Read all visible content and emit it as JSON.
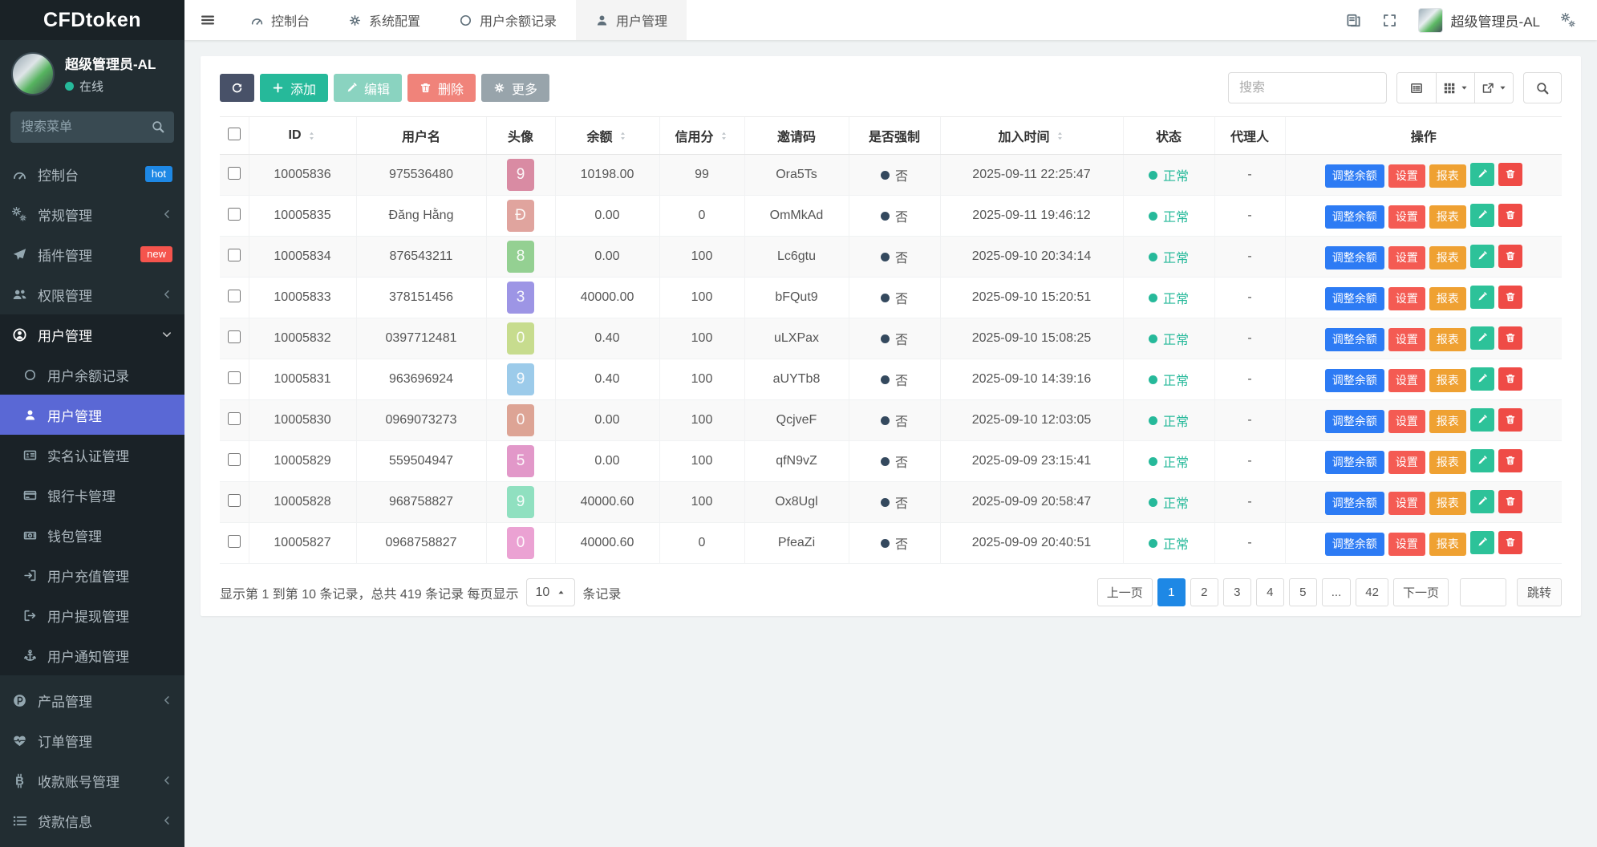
{
  "brand": {
    "logo": "CFDtoken"
  },
  "colors": {
    "sidebar_bg": "#222d32",
    "sidebar_active": "#5a68d5",
    "primary": "#1e88e5",
    "success": "#26b99a",
    "status_normal": "#26b99a",
    "forced_dot": "#34495e",
    "badge_hot": "#1e88e5",
    "badge_new": "#f5544d",
    "btn_refresh": "#485168",
    "btn_add": "#26b99a",
    "btn_edit": "#8ad3c0",
    "btn_delete": "#f0837a",
    "btn_more": "#98a4ab",
    "action_adjust": "#2d7bf4",
    "action_set": "#f45b53",
    "action_report": "#efa132",
    "action_edit": "#2dc299",
    "action_delete": "#ef4b46"
  },
  "sidebar": {
    "user": {
      "name": "超级管理员-AL",
      "status": "在线"
    },
    "search_placeholder": "搜索菜单",
    "menu": [
      {
        "key": "dashboard",
        "label": "控制台",
        "icon": "gauge-icon",
        "badge": "hot",
        "badge_color": "#1e88e5"
      },
      {
        "key": "general-management",
        "label": "常规管理",
        "icon": "gears-icon",
        "chevron": true
      },
      {
        "key": "plugin-management",
        "label": "插件管理",
        "icon": "send-icon",
        "badge": "new",
        "badge_color": "#f5544d"
      },
      {
        "key": "permission-management",
        "label": "权限管理",
        "icon": "users-icon",
        "chevron": true
      },
      {
        "key": "user-management-group",
        "label": "用户管理",
        "icon": "user-circle-icon",
        "expanded": true,
        "children": [
          {
            "key": "user-balance-records",
            "label": "用户余额记录",
            "icon": "circle-icon"
          },
          {
            "key": "user-management",
            "label": "用户管理",
            "icon": "user-icon",
            "active": true
          },
          {
            "key": "realname-auth-management",
            "label": "实名认证管理",
            "icon": "id-card-icon"
          },
          {
            "key": "bank-card-management",
            "label": "银行卡管理",
            "icon": "credit-card-icon"
          },
          {
            "key": "wallet-management",
            "label": "钱包管理",
            "icon": "wallet-icon"
          },
          {
            "key": "user-recharge-management",
            "label": "用户充值管理",
            "icon": "sign-in-icon"
          },
          {
            "key": "user-withdraw-management",
            "label": "用户提现管理",
            "icon": "sign-out-icon"
          },
          {
            "key": "user-notice-management",
            "label": "用户通知管理",
            "icon": "anchor-icon"
          }
        ]
      },
      {
        "key": "product-management",
        "label": "产品管理",
        "icon": "p-circle-icon",
        "chevron": true
      },
      {
        "key": "order-management",
        "label": "订单管理",
        "icon": "heartbeat-icon"
      },
      {
        "key": "collection-account-management",
        "label": "收款账号管理",
        "icon": "btc-icon",
        "chevron": true
      },
      {
        "key": "loan-info",
        "label": "贷款信息",
        "icon": "list-icon",
        "chevron": true
      }
    ]
  },
  "navbar": {
    "tabs": [
      {
        "key": "dashboard",
        "label": "控制台",
        "icon": "gauge-icon"
      },
      {
        "key": "system-config",
        "label": "系统配置",
        "icon": "gear-icon"
      },
      {
        "key": "user-balance-records",
        "label": "用户余额记录",
        "icon": "circle-icon"
      },
      {
        "key": "user-management",
        "label": "用户管理",
        "icon": "user-icon",
        "active": true
      }
    ],
    "user": "超级管理员-AL"
  },
  "toolbar": {
    "add_label": "添加",
    "edit_label": "编辑",
    "delete_label": "删除",
    "more_label": "更多",
    "search_placeholder": "搜索"
  },
  "table": {
    "columns": [
      {
        "label": "ID",
        "sortable": true
      },
      {
        "label": "用户名",
        "sortable": false
      },
      {
        "label": "头像",
        "sortable": false
      },
      {
        "label": "余额",
        "sortable": true
      },
      {
        "label": "信用分",
        "sortable": true
      },
      {
        "label": "邀请码",
        "sortable": false
      },
      {
        "label": "是否强制",
        "sortable": false
      },
      {
        "label": "加入时间",
        "sortable": true
      },
      {
        "label": "状态",
        "sortable": false
      },
      {
        "label": "代理人",
        "sortable": false
      },
      {
        "label": "操作",
        "sortable": false
      }
    ],
    "row_actions": [
      "调整余额",
      "设置",
      "报表"
    ],
    "rows": [
      {
        "id": "10005836",
        "username": "975536480",
        "avatar_text": "9",
        "avatar_color": "#d98ba3",
        "balance": "10198.00",
        "credit": "99",
        "invite_code": "Ora5Ts",
        "forced": "否",
        "join_time": "2025-09-11 22:25:47",
        "status": "正常",
        "agent": "-"
      },
      {
        "id": "10005835",
        "username": "Đăng Hằng",
        "avatar_text": "Đ",
        "avatar_color": "#e0a49e",
        "balance": "0.00",
        "credit": "0",
        "invite_code": "OmMkAd",
        "forced": "否",
        "join_time": "2025-09-11 19:46:12",
        "status": "正常",
        "agent": "-"
      },
      {
        "id": "10005834",
        "username": "876543211",
        "avatar_text": "8",
        "avatar_color": "#94d092",
        "balance": "0.00",
        "credit": "100",
        "invite_code": "Lc6gtu",
        "forced": "否",
        "join_time": "2025-09-10 20:34:14",
        "status": "正常",
        "agent": "-"
      },
      {
        "id": "10005833",
        "username": "378151456",
        "avatar_text": "3",
        "avatar_color": "#9d95e5",
        "balance": "40000.00",
        "credit": "100",
        "invite_code": "bFQut9",
        "forced": "否",
        "join_time": "2025-09-10 15:20:51",
        "status": "正常",
        "agent": "-"
      },
      {
        "id": "10005832",
        "username": "0397712481",
        "avatar_text": "0",
        "avatar_color": "#c7dc8e",
        "balance": "0.40",
        "credit": "100",
        "invite_code": "uLXPax",
        "forced": "否",
        "join_time": "2025-09-10 15:08:25",
        "status": "正常",
        "agent": "-"
      },
      {
        "id": "10005831",
        "username": "963696924",
        "avatar_text": "9",
        "avatar_color": "#9ccbea",
        "balance": "0.40",
        "credit": "100",
        "invite_code": "aUYTb8",
        "forced": "否",
        "join_time": "2025-09-10 14:39:16",
        "status": "正常",
        "agent": "-"
      },
      {
        "id": "10005830",
        "username": "0969073273",
        "avatar_text": "0",
        "avatar_color": "#dda495",
        "balance": "0.00",
        "credit": "100",
        "invite_code": "QcjveF",
        "forced": "否",
        "join_time": "2025-09-10 12:03:05",
        "status": "正常",
        "agent": "-"
      },
      {
        "id": "10005829",
        "username": "559504947",
        "avatar_text": "5",
        "avatar_color": "#e298c9",
        "balance": "0.00",
        "credit": "100",
        "invite_code": "qfN9vZ",
        "forced": "否",
        "join_time": "2025-09-09 23:15:41",
        "status": "正常",
        "agent": "-"
      },
      {
        "id": "10005828",
        "username": "968758827",
        "avatar_text": "9",
        "avatar_color": "#90e0c0",
        "balance": "40000.60",
        "credit": "100",
        "invite_code": "Ox8Ugl",
        "forced": "否",
        "join_time": "2025-09-09 20:58:47",
        "status": "正常",
        "agent": "-"
      },
      {
        "id": "10005827",
        "username": "0968758827",
        "avatar_text": "0",
        "avatar_color": "#eba2d3",
        "balance": "40000.60",
        "credit": "0",
        "invite_code": "PfeaZi",
        "forced": "否",
        "join_time": "2025-09-09 20:40:51",
        "status": "正常",
        "agent": "-"
      }
    ]
  },
  "footer": {
    "summary_prefix": "显示第 1 到第 10 条记录，总共 419 条记录 每页显示",
    "page_size": "10",
    "summary_suffix": "条记录",
    "pagination": {
      "prev": "上一页",
      "next": "下一页",
      "pages": [
        "1",
        "2",
        "3",
        "4",
        "5",
        "...",
        "42"
      ],
      "active": "1",
      "jump_label": "跳转"
    }
  }
}
